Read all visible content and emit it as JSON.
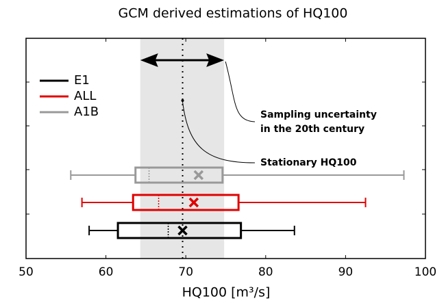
{
  "chart_data": {
    "type": "boxplot",
    "orientation": "horizontal",
    "title": "GCM derived estimations of HQ100",
    "x_label": "HQ100 [m³/s]",
    "xlim": [
      50,
      100
    ],
    "xticks": [
      50,
      60,
      70,
      80,
      90,
      100
    ],
    "band": [
      64.3,
      74.8
    ],
    "stationary": 69.6,
    "annotations": [
      "Sampling uncertainty",
      "in the 20th century",
      "Stationary HQ100"
    ],
    "legend": "upper left",
    "series": [
      {
        "name": "E1",
        "color": "#000000",
        "whislo": 57.9,
        "q1": 61.5,
        "med": 67.8,
        "q3": 76.9,
        "whishi": 83.6,
        "mean": 69.6
      },
      {
        "name": "ALL",
        "color": "#e00000",
        "whislo": 57.0,
        "q1": 63.4,
        "med": 66.6,
        "q3": 76.6,
        "whishi": 92.5,
        "mean": 71.0
      },
      {
        "name": "A1B",
        "color": "#999999",
        "whislo": 55.6,
        "q1": 63.7,
        "med": 65.4,
        "q3": 74.6,
        "whishi": 97.3,
        "mean": 71.6
      }
    ]
  }
}
